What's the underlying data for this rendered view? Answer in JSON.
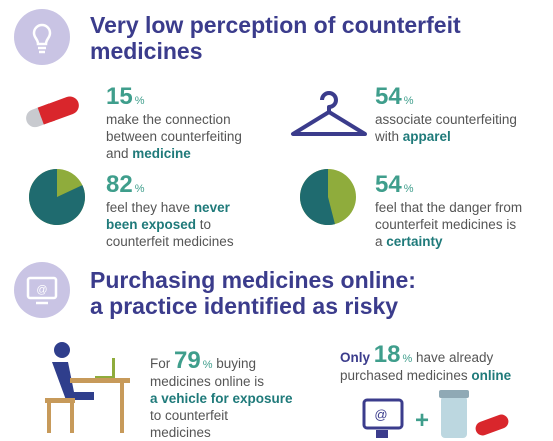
{
  "sections": [
    {
      "title": [
        "Very low perception of counterfeit",
        "medicines"
      ],
      "stats": [
        {
          "value": 15,
          "unit": "%",
          "lines": [
            [
              "make the connection"
            ],
            [
              "between counterfeiting"
            ],
            [
              "and ",
              "medicine"
            ]
          ]
        },
        {
          "value": 54,
          "unit": "%",
          "lines": [
            [
              "associate counterfeiting"
            ],
            [
              "with ",
              "apparel"
            ]
          ]
        },
        {
          "value": 82,
          "unit": "%",
          "lines": [
            [
              "feel they have ",
              "never"
            ],
            [
              "been exposed",
              " to"
            ],
            [
              "counterfeit medicines"
            ]
          ]
        },
        {
          "value": 54,
          "unit": "%",
          "lines": [
            [
              "feel that the danger from"
            ],
            [
              "counterfeit medicines is"
            ],
            [
              "a ",
              "certainty"
            ]
          ]
        }
      ]
    },
    {
      "title": [
        "Purchasing medicines online:",
        "a practice identified as risky"
      ],
      "stats": [
        {
          "prefix": "For ",
          "value": 79,
          "unit": "%",
          "suffix": " buying",
          "lines": [
            [
              "medicines online is"
            ],
            [
              "a vehicle for exposure"
            ],
            [
              "to counterfeit"
            ],
            [
              "medicines"
            ]
          ]
        },
        {
          "prefix": "Only ",
          "value": 18,
          "unit": "%",
          "suffix": " have already",
          "lines": [
            [
              "purchased medicines ",
              "online"
            ]
          ]
        }
      ]
    }
  ]
}
